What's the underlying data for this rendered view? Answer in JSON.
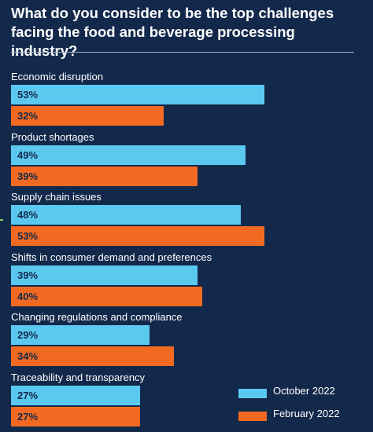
{
  "chart_data": {
    "type": "bar",
    "orientation": "horizontal",
    "title": "What do you consider to be the top challenges facing the food and beverage processing industry?",
    "categories": [
      "Economic disruption",
      "Product shortages",
      "Supply chain issues",
      "Shifts in consumer demand and preferences",
      "Changing regulations and compliance",
      "Traceability and transparency"
    ],
    "series": [
      {
        "name": "October 2022",
        "color": "#5bc8f0",
        "values": [
          53,
          49,
          48,
          39,
          29,
          27
        ],
        "labels": [
          "53%",
          "49%",
          "48%",
          "39%",
          "29%",
          "27%"
        ]
      },
      {
        "name": "February 2022",
        "color": "#f26a21",
        "values": [
          32,
          39,
          53,
          40,
          34,
          27
        ],
        "labels": [
          "32%",
          "39%",
          "53%",
          "40%",
          "34%",
          "27%"
        ]
      }
    ],
    "xlim": [
      0,
      100
    ],
    "legend_position": "bottom-right",
    "grid": false
  }
}
